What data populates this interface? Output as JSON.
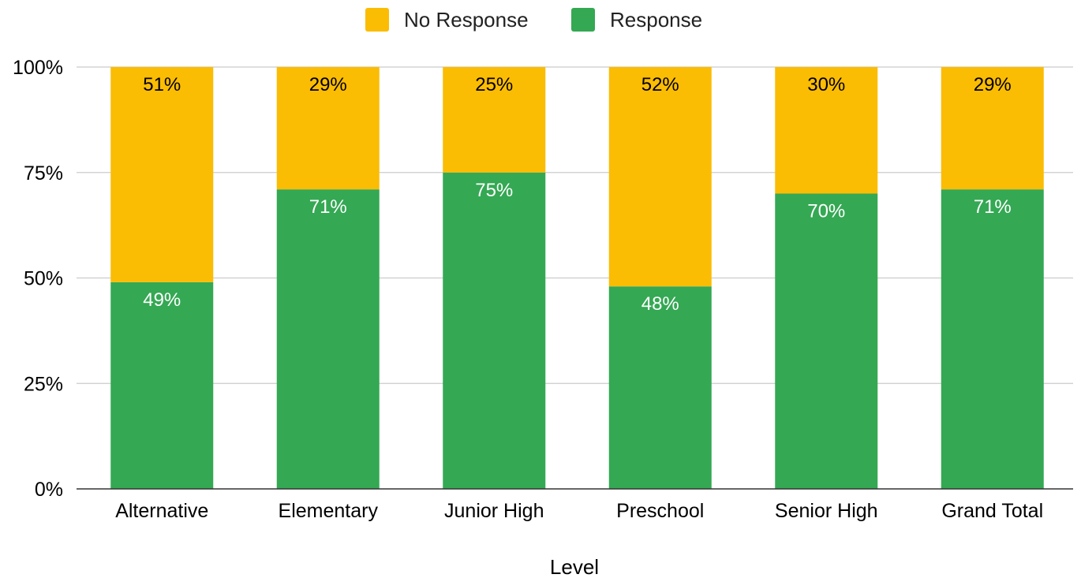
{
  "chart_data": {
    "type": "bar",
    "stacked": true,
    "percent_stacked": true,
    "categories": [
      "Alternative",
      "Elementary",
      "Junior High",
      "Preschool",
      "Senior High",
      "Grand Total"
    ],
    "series": [
      {
        "name": "Response",
        "color": "#34a853",
        "values": [
          49,
          71,
          75,
          48,
          70,
          71
        ],
        "labels": [
          "49%",
          "71%",
          "75%",
          "48%",
          "70%",
          "71%"
        ],
        "label_color": "#ffffff"
      },
      {
        "name": "No Response",
        "color": "#fbbc04",
        "values": [
          51,
          29,
          25,
          52,
          30,
          29
        ],
        "labels": [
          "51%",
          "29%",
          "25%",
          "52%",
          "30%",
          "29%"
        ],
        "label_color": "#000000"
      }
    ],
    "legend": {
      "position": "top",
      "entries": [
        {
          "name": "No Response",
          "color": "#fbbc04"
        },
        {
          "name": "Response",
          "color": "#34a853"
        }
      ]
    },
    "xlabel": "Level",
    "ylabel": "",
    "ylim": [
      0,
      100
    ],
    "yticks": [
      {
        "value": 0,
        "label": "0%"
      },
      {
        "value": 25,
        "label": "25%"
      },
      {
        "value": 50,
        "label": "50%"
      },
      {
        "value": 75,
        "label": "75%"
      },
      {
        "value": 100,
        "label": "100%"
      }
    ],
    "grid": true
  }
}
